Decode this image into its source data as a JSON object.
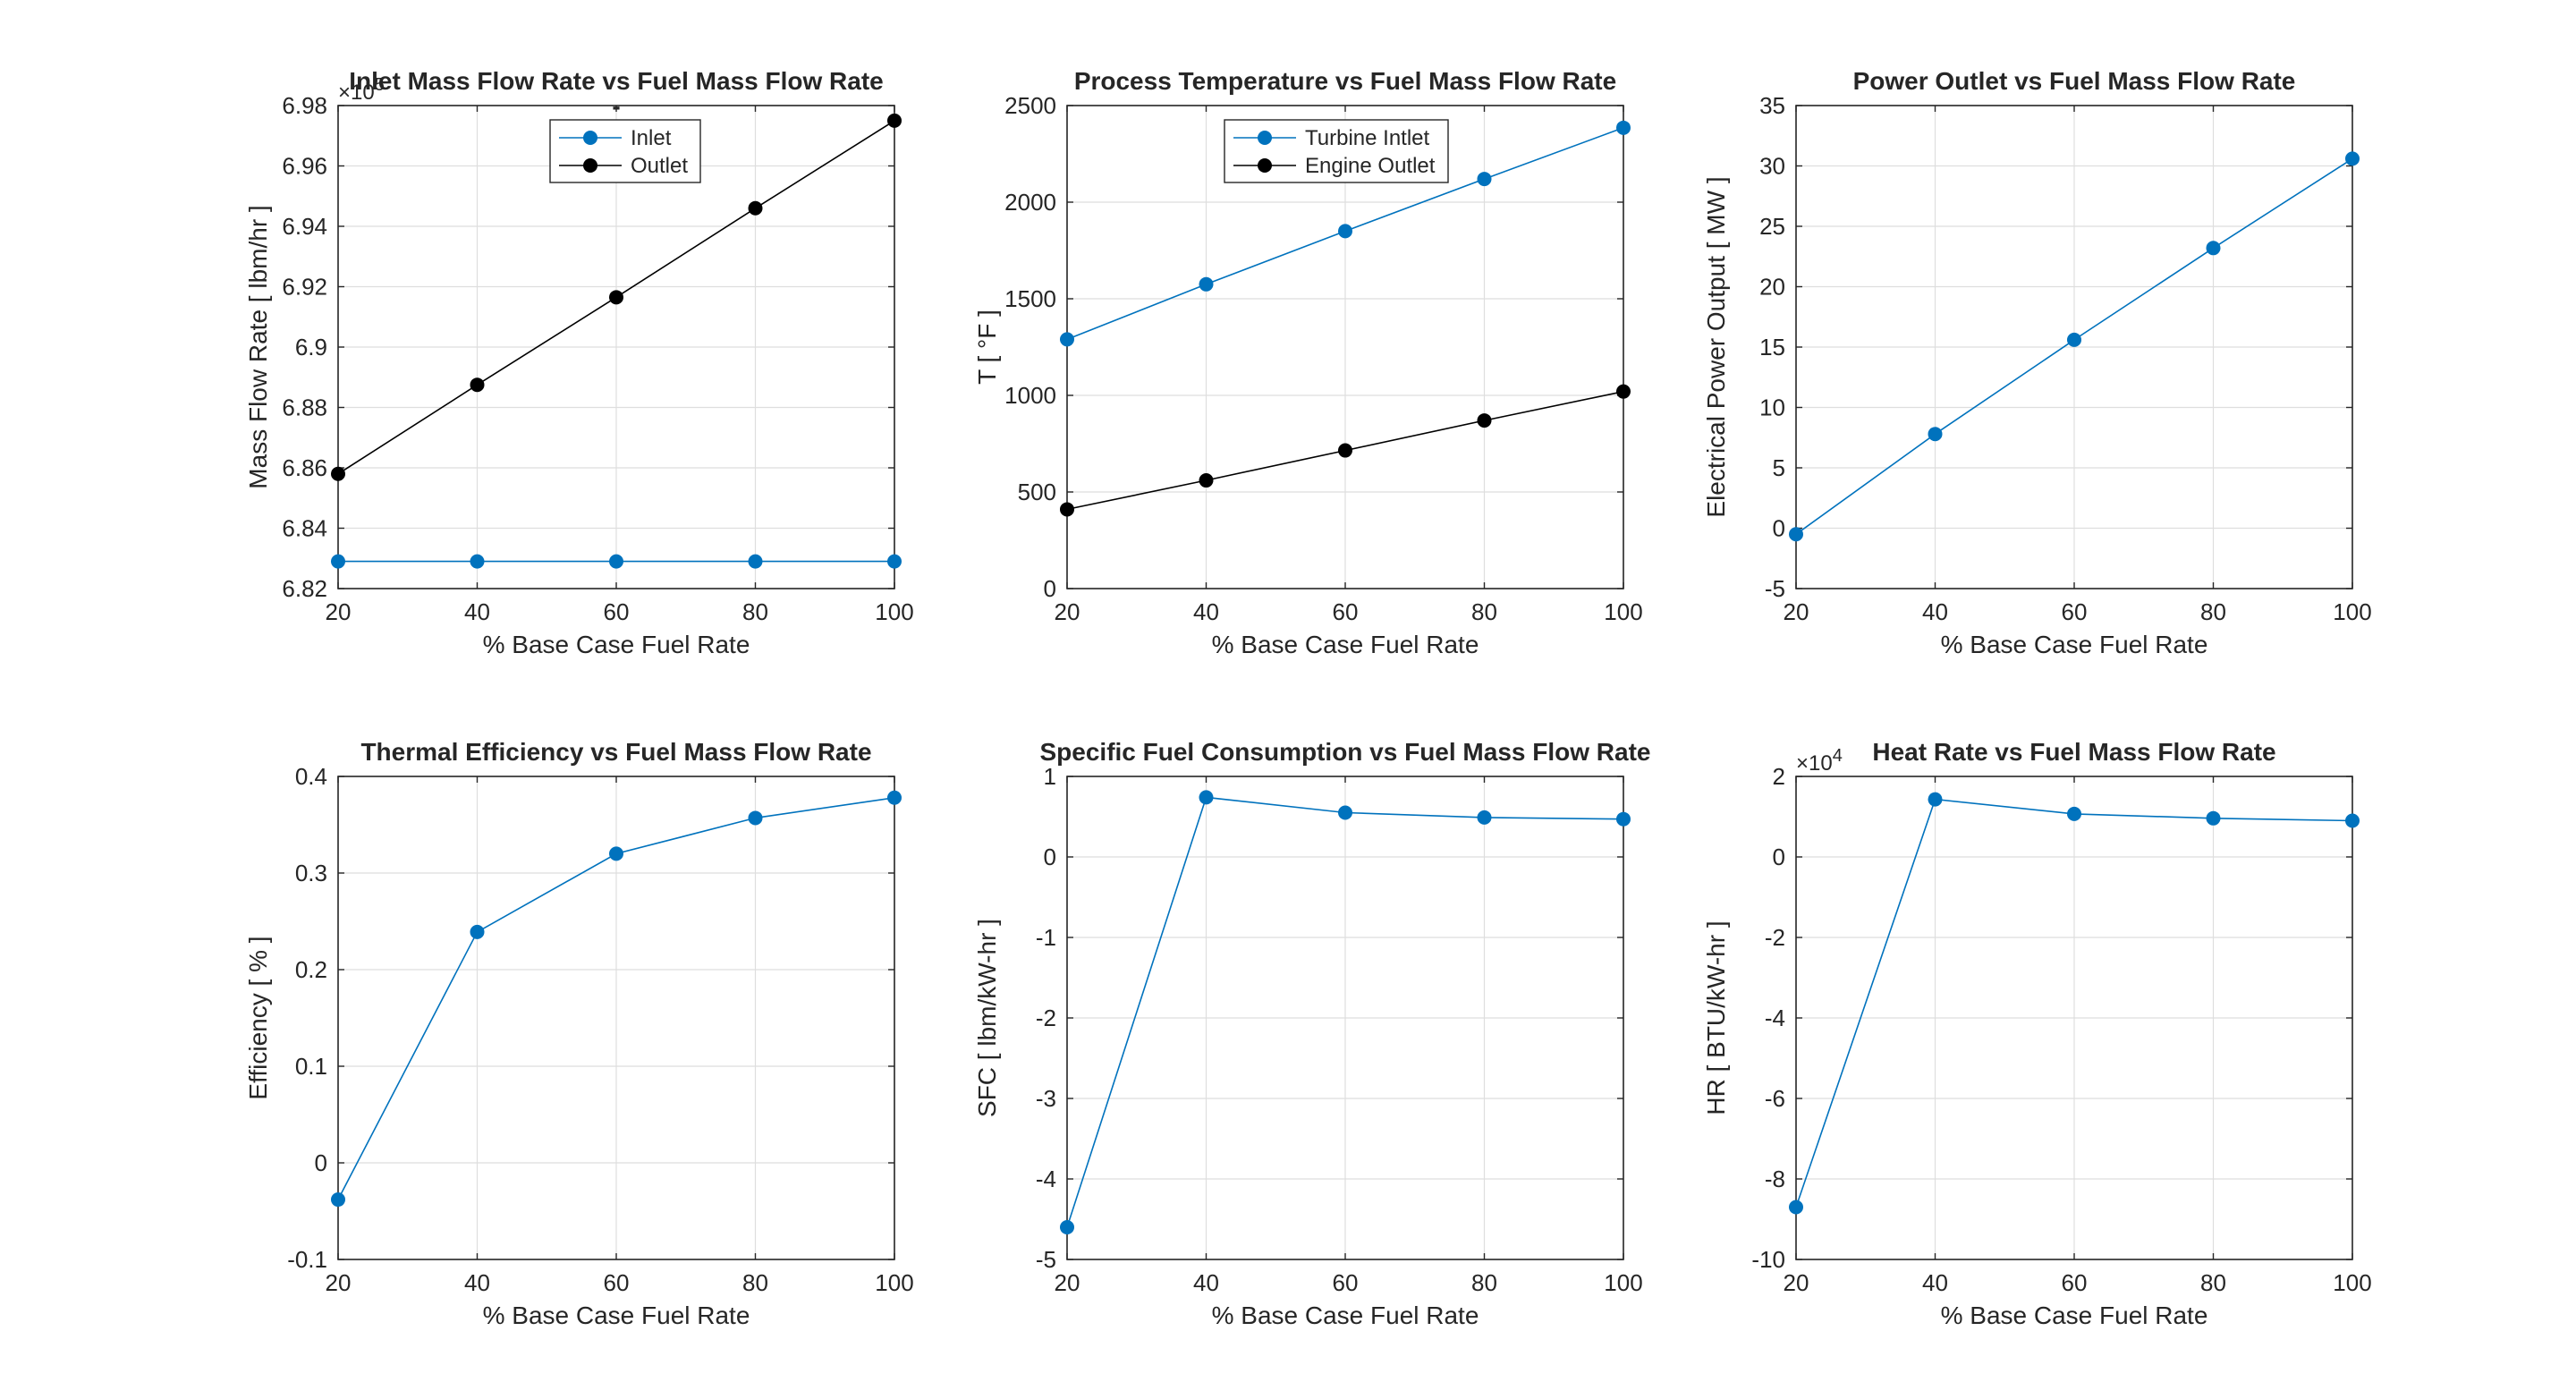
{
  "chart_data": [
    {
      "type": "line",
      "title": "Inlet Mass Flow Rate vs Fuel Mass Flow Rate",
      "subtitle": "-",
      "xlabel": "% Base Case Fuel Rate",
      "ylabel": "Mass Flow Rate [ lbm/hr ]",
      "y_exponent_base": "×10",
      "y_exponent": "5",
      "xlim": [
        20,
        100
      ],
      "ylim": [
        6.82,
        6.98
      ],
      "xticks": [
        20,
        40,
        60,
        80,
        100
      ],
      "yticks": [
        6.82,
        6.84,
        6.86,
        6.88,
        6.9,
        6.92,
        6.94,
        6.96,
        6.98
      ],
      "ytick_labels": [
        "6.82",
        "6.84",
        "6.86",
        "6.88",
        "6.9",
        "6.92",
        "6.94",
        "6.96",
        "6.98"
      ],
      "grid": true,
      "legend": "top-center",
      "x": [
        20,
        40,
        60,
        80,
        100
      ],
      "series": [
        {
          "name": "Inlet",
          "color": "#0072BD",
          "values": [
            6.829,
            6.829,
            6.829,
            6.829,
            6.829
          ]
        },
        {
          "name": "Outlet",
          "color": "#000000",
          "values": [
            6.858,
            6.8875,
            6.9165,
            6.946,
            6.975
          ]
        }
      ]
    },
    {
      "type": "line",
      "title": "Process Temperature vs Fuel Mass Flow Rate",
      "xlabel": "% Base Case Fuel Rate",
      "ylabel": "T [ °F ]",
      "xlim": [
        20,
        100
      ],
      "ylim": [
        0,
        2500
      ],
      "xticks": [
        20,
        40,
        60,
        80,
        100
      ],
      "yticks": [
        0,
        500,
        1000,
        1500,
        2000,
        2500
      ],
      "ytick_labels": [
        "0",
        "500",
        "1000",
        "1500",
        "2000",
        "2500"
      ],
      "grid": true,
      "legend": "top-center",
      "x": [
        20,
        40,
        60,
        80,
        100
      ],
      "series": [
        {
          "name": "Turbine Intlet",
          "color": "#0072BD",
          "values": [
            1290,
            1575,
            1850,
            2120,
            2385
          ]
        },
        {
          "name": "Engine Outlet",
          "color": "#000000",
          "values": [
            410,
            560,
            715,
            870,
            1020
          ]
        }
      ]
    },
    {
      "type": "line",
      "title": "Power Outlet vs Fuel Mass Flow Rate",
      "xlabel": "% Base Case Fuel Rate",
      "ylabel": "Electrical Power Output [ MW ]",
      "xlim": [
        20,
        100
      ],
      "ylim": [
        -5,
        35
      ],
      "xticks": [
        20,
        40,
        60,
        80,
        100
      ],
      "yticks": [
        -5,
        0,
        5,
        10,
        15,
        20,
        25,
        30,
        35
      ],
      "ytick_labels": [
        "-5",
        "0",
        "5",
        "10",
        "15",
        "20",
        "25",
        "30",
        "35"
      ],
      "grid": true,
      "x": [
        20,
        40,
        60,
        80,
        100
      ],
      "series": [
        {
          "color": "#0072BD",
          "values": [
            -0.5,
            7.8,
            15.6,
            23.2,
            30.6
          ]
        }
      ]
    },
    {
      "type": "line",
      "title": "Thermal Efficiency vs Fuel Mass Flow Rate",
      "xlabel": "% Base Case Fuel Rate",
      "ylabel": "Efficiency [ % ]",
      "xlim": [
        20,
        100
      ],
      "ylim": [
        -0.1,
        0.4
      ],
      "xticks": [
        20,
        40,
        60,
        80,
        100
      ],
      "yticks": [
        -0.1,
        0,
        0.1,
        0.2,
        0.3,
        0.4
      ],
      "ytick_labels": [
        "-0.1",
        "0",
        "0.1",
        "0.2",
        "0.3",
        "0.4"
      ],
      "grid": true,
      "x": [
        20,
        40,
        60,
        80,
        100
      ],
      "series": [
        {
          "color": "#0072BD",
          "values": [
            -0.038,
            0.239,
            0.32,
            0.357,
            0.378
          ]
        }
      ]
    },
    {
      "type": "line",
      "title": "Specific Fuel Consumption vs Fuel Mass Flow Rate",
      "xlabel": "% Base Case Fuel Rate",
      "ylabel": "SFC [ lbm/kW-hr ]",
      "xlim": [
        20,
        100
      ],
      "ylim": [
        -5,
        1
      ],
      "xticks": [
        20,
        40,
        60,
        80,
        100
      ],
      "yticks": [
        -5,
        -4,
        -3,
        -2,
        -1,
        0,
        1
      ],
      "ytick_labels": [
        "-5",
        "-4",
        "-3",
        "-2",
        "-1",
        "0",
        "1"
      ],
      "grid": true,
      "x": [
        20,
        40,
        60,
        80,
        100
      ],
      "series": [
        {
          "color": "#0072BD",
          "values": [
            -4.6,
            0.74,
            0.55,
            0.49,
            0.47
          ]
        }
      ]
    },
    {
      "type": "line",
      "title": "Heat Rate vs Fuel Mass Flow Rate",
      "xlabel": "% Base Case Fuel Rate",
      "ylabel": "HR [ BTU/kW-hr ]",
      "y_exponent_base": "×10",
      "y_exponent": "4",
      "xlim": [
        20,
        100
      ],
      "ylim": [
        -10,
        2
      ],
      "xticks": [
        20,
        40,
        60,
        80,
        100
      ],
      "yticks": [
        -10,
        -8,
        -6,
        -4,
        -2,
        0,
        2
      ],
      "ytick_labels": [
        "-10",
        "-8",
        "-6",
        "-4",
        "-2",
        "0",
        "2"
      ],
      "grid": true,
      "x": [
        20,
        40,
        60,
        80,
        100
      ],
      "series": [
        {
          "color": "#0072BD",
          "values": [
            -8.7,
            1.43,
            1.07,
            0.96,
            0.9
          ]
        }
      ]
    }
  ]
}
